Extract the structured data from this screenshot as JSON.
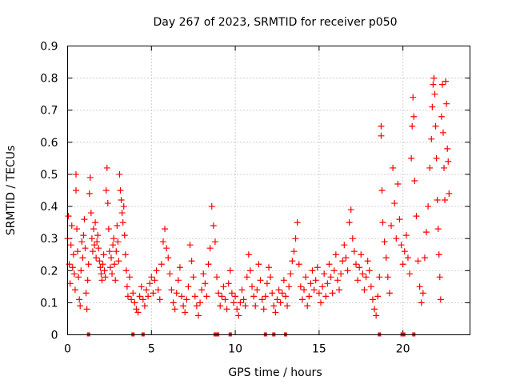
{
  "chart_data": {
    "type": "scatter",
    "title": "Day 267 of 2023, SRMTID for receiver p050",
    "xlabel": "GPS time / hours",
    "ylabel": "SRMTID / TECUs",
    "xlim": [
      0,
      24
    ],
    "ylim": [
      0,
      0.9
    ],
    "xticks": [
      0,
      5,
      10,
      15,
      20
    ],
    "xtick_labels": [
      "0",
      "5",
      "10",
      "15",
      "20"
    ],
    "yticks": [
      0,
      0.1,
      0.2,
      0.3,
      0.4,
      0.5,
      0.6,
      0.7,
      0.8,
      0.9
    ],
    "ytick_labels": [
      "0",
      "0.1",
      "0.2",
      "0.3",
      "0.4",
      "0.5",
      "0.6",
      "0.7",
      "0.8",
      "0.9"
    ],
    "grid": true,
    "marker": "+",
    "series": [
      {
        "name": "SRMTID",
        "color": "#ff0000",
        "points": [
          [
            0.0,
            0.3
          ],
          [
            0.05,
            0.37
          ],
          [
            0.1,
            0.22
          ],
          [
            0.15,
            0.16
          ],
          [
            0.2,
            0.28
          ],
          [
            0.25,
            0.34
          ],
          [
            0.3,
            0.21
          ],
          [
            0.35,
            0.25
          ],
          [
            0.4,
            0.19
          ],
          [
            0.45,
            0.14
          ],
          [
            0.5,
            0.5
          ],
          [
            0.5,
            0.45
          ],
          [
            0.55,
            0.33
          ],
          [
            0.6,
            0.26
          ],
          [
            0.65,
            0.18
          ],
          [
            0.7,
            0.11
          ],
          [
            0.75,
            0.09
          ],
          [
            0.8,
            0.2
          ],
          [
            0.85,
            0.29
          ],
          [
            0.9,
            0.24
          ],
          [
            0.95,
            0.31
          ],
          [
            1.0,
            0.36
          ],
          [
            1.05,
            0.27
          ],
          [
            1.1,
            0.13
          ],
          [
            1.15,
            0.08
          ],
          [
            1.2,
            0.17
          ],
          [
            1.25,
            0.22
          ],
          [
            1.3,
            0.44
          ],
          [
            1.35,
            0.49
          ],
          [
            1.4,
            0.38
          ],
          [
            1.45,
            0.3
          ],
          [
            1.5,
            0.26
          ],
          [
            1.55,
            0.33
          ],
          [
            1.6,
            0.28
          ],
          [
            1.65,
            0.35
          ],
          [
            1.7,
            0.24
          ],
          [
            1.75,
            0.29
          ],
          [
            1.8,
            0.31
          ],
          [
            1.85,
            0.27
          ],
          [
            1.9,
            0.23
          ],
          [
            1.95,
            0.21
          ],
          [
            2.0,
            0.19
          ],
          [
            2.05,
            0.17
          ],
          [
            2.1,
            0.22
          ],
          [
            2.15,
            0.25
          ],
          [
            2.2,
            0.2
          ],
          [
            2.25,
            0.18
          ],
          [
            2.3,
            0.45
          ],
          [
            2.35,
            0.52
          ],
          [
            2.4,
            0.41
          ],
          [
            2.45,
            0.33
          ],
          [
            2.5,
            0.26
          ],
          [
            2.55,
            0.21
          ],
          [
            2.6,
            0.24
          ],
          [
            2.65,
            0.19
          ],
          [
            2.7,
            0.28
          ],
          [
            2.75,
            0.3
          ],
          [
            2.8,
            0.22
          ],
          [
            2.85,
            0.17
          ],
          [
            2.9,
            0.26
          ],
          [
            2.95,
            0.34
          ],
          [
            3.0,
            0.29
          ],
          [
            3.05,
            0.23
          ],
          [
            3.1,
            0.5
          ],
          [
            3.15,
            0.45
          ],
          [
            3.2,
            0.42
          ],
          [
            3.25,
            0.38
          ],
          [
            3.3,
            0.35
          ],
          [
            3.35,
            0.4
          ],
          [
            3.4,
            0.31
          ],
          [
            3.45,
            0.25
          ],
          [
            3.5,
            0.2
          ],
          [
            3.55,
            0.15
          ],
          [
            3.6,
            0.12
          ],
          [
            3.7,
            0.18
          ],
          [
            3.8,
            0.11
          ],
          [
            3.9,
            0.13
          ],
          [
            4.0,
            0.1
          ],
          [
            4.1,
            0.08
          ],
          [
            4.2,
            0.07
          ],
          [
            4.3,
            0.12
          ],
          [
            4.4,
            0.15
          ],
          [
            4.5,
            0.11
          ],
          [
            4.6,
            0.09
          ],
          [
            4.7,
            0.14
          ],
          [
            4.8,
            0.12
          ],
          [
            4.9,
            0.16
          ],
          [
            5.0,
            0.18
          ],
          [
            5.1,
            0.13
          ],
          [
            5.2,
            0.17
          ],
          [
            5.3,
            0.2
          ],
          [
            5.4,
            0.14
          ],
          [
            5.5,
            0.11
          ],
          [
            5.6,
            0.22
          ],
          [
            5.7,
            0.29
          ],
          [
            5.8,
            0.33
          ],
          [
            5.9,
            0.27
          ],
          [
            6.0,
            0.24
          ],
          [
            6.1,
            0.19
          ],
          [
            6.2,
            0.14
          ],
          [
            6.3,
            0.1
          ],
          [
            6.4,
            0.08
          ],
          [
            6.5,
            0.13
          ],
          [
            6.6,
            0.17
          ],
          [
            6.7,
            0.21
          ],
          [
            6.8,
            0.12
          ],
          [
            6.9,
            0.09
          ],
          [
            7.0,
            0.07
          ],
          [
            7.1,
            0.11
          ],
          [
            7.2,
            0.15
          ],
          [
            7.3,
            0.28
          ],
          [
            7.4,
            0.23
          ],
          [
            7.5,
            0.18
          ],
          [
            7.6,
            0.12
          ],
          [
            7.7,
            0.09
          ],
          [
            7.8,
            0.06
          ],
          [
            7.9,
            0.1
          ],
          [
            8.0,
            0.14
          ],
          [
            8.1,
            0.19
          ],
          [
            8.2,
            0.16
          ],
          [
            8.3,
            0.12
          ],
          [
            8.4,
            0.22
          ],
          [
            8.5,
            0.27
          ],
          [
            8.6,
            0.4
          ],
          [
            8.7,
            0.34
          ],
          [
            8.8,
            0.29
          ],
          [
            8.9,
            0.18
          ],
          [
            9.0,
            0.13
          ],
          [
            9.1,
            0.09
          ],
          [
            9.2,
            0.12
          ],
          [
            9.3,
            0.15
          ],
          [
            9.4,
            0.11
          ],
          [
            9.5,
            0.08
          ],
          [
            9.6,
            0.16
          ],
          [
            9.7,
            0.2
          ],
          [
            9.8,
            0.13
          ],
          [
            9.9,
            0.1
          ],
          [
            10.0,
            0.12
          ],
          [
            10.1,
            0.08
          ],
          [
            10.2,
            0.06
          ],
          [
            10.3,
            0.1
          ],
          [
            10.4,
            0.14
          ],
          [
            10.5,
            0.11
          ],
          [
            10.6,
            0.09
          ],
          [
            10.7,
            0.18
          ],
          [
            10.8,
            0.25
          ],
          [
            10.9,
            0.2
          ],
          [
            11.0,
            0.15
          ],
          [
            11.1,
            0.12
          ],
          [
            11.2,
            0.09
          ],
          [
            11.3,
            0.14
          ],
          [
            11.4,
            0.22
          ],
          [
            11.5,
            0.17
          ],
          [
            11.6,
            0.11
          ],
          [
            11.7,
            0.08
          ],
          [
            11.8,
            0.12
          ],
          [
            11.9,
            0.16
          ],
          [
            12.0,
            0.21
          ],
          [
            12.1,
            0.18
          ],
          [
            12.2,
            0.13
          ],
          [
            12.3,
            0.09
          ],
          [
            12.4,
            0.07
          ],
          [
            12.5,
            0.11
          ],
          [
            12.6,
            0.14
          ],
          [
            12.7,
            0.1
          ],
          [
            12.8,
            0.13
          ],
          [
            12.9,
            0.17
          ],
          [
            13.0,
            0.12
          ],
          [
            13.1,
            0.09
          ],
          [
            13.2,
            0.15
          ],
          [
            13.3,
            0.19
          ],
          [
            13.4,
            0.23
          ],
          [
            13.5,
            0.26
          ],
          [
            13.6,
            0.3
          ],
          [
            13.7,
            0.35
          ],
          [
            13.8,
            0.22
          ],
          [
            13.9,
            0.15
          ],
          [
            14.0,
            0.11
          ],
          [
            14.1,
            0.14
          ],
          [
            14.2,
            0.18
          ],
          [
            14.3,
            0.09
          ],
          [
            14.4,
            0.12
          ],
          [
            14.5,
            0.16
          ],
          [
            14.6,
            0.2
          ],
          [
            14.7,
            0.14
          ],
          [
            14.8,
            0.17
          ],
          [
            14.9,
            0.21
          ],
          [
            15.0,
            0.13
          ],
          [
            15.1,
            0.1
          ],
          [
            15.2,
            0.15
          ],
          [
            15.3,
            0.19
          ],
          [
            15.4,
            0.12
          ],
          [
            15.5,
            0.16
          ],
          [
            15.6,
            0.22
          ],
          [
            15.7,
            0.18
          ],
          [
            15.8,
            0.13
          ],
          [
            15.9,
            0.2
          ],
          [
            16.0,
            0.25
          ],
          [
            16.1,
            0.17
          ],
          [
            16.2,
            0.14
          ],
          [
            16.3,
            0.19
          ],
          [
            16.4,
            0.23
          ],
          [
            16.5,
            0.28
          ],
          [
            16.6,
            0.24
          ],
          [
            16.7,
            0.2
          ],
          [
            16.8,
            0.35
          ],
          [
            16.9,
            0.39
          ],
          [
            17.0,
            0.3
          ],
          [
            17.1,
            0.26
          ],
          [
            17.2,
            0.22
          ],
          [
            17.3,
            0.17
          ],
          [
            17.4,
            0.21
          ],
          [
            17.5,
            0.25
          ],
          [
            17.6,
            0.19
          ],
          [
            17.7,
            0.14
          ],
          [
            17.8,
            0.18
          ],
          [
            17.9,
            0.23
          ],
          [
            18.0,
            0.2
          ],
          [
            18.1,
            0.15
          ],
          [
            18.2,
            0.11
          ],
          [
            18.3,
            0.08
          ],
          [
            18.4,
            0.06
          ],
          [
            18.5,
            0.12
          ],
          [
            18.6,
            0.18
          ],
          [
            18.7,
            0.65
          ],
          [
            18.7,
            0.62
          ],
          [
            18.75,
            0.45
          ],
          [
            18.8,
            0.35
          ],
          [
            18.9,
            0.29
          ],
          [
            19.0,
            0.24
          ],
          [
            19.1,
            0.18
          ],
          [
            19.2,
            0.13
          ],
          [
            19.3,
            0.34
          ],
          [
            19.4,
            0.52
          ],
          [
            19.5,
            0.41
          ],
          [
            19.6,
            0.3
          ],
          [
            19.7,
            0.47
          ],
          [
            19.8,
            0.36
          ],
          [
            19.9,
            0.28
          ],
          [
            20.0,
            0.22
          ],
          [
            20.1,
            0.26
          ],
          [
            20.2,
            0.31
          ],
          [
            20.3,
            0.24
          ],
          [
            20.4,
            0.19
          ],
          [
            20.5,
            0.55
          ],
          [
            20.55,
            0.65
          ],
          [
            20.6,
            0.74
          ],
          [
            20.65,
            0.68
          ],
          [
            20.7,
            0.48
          ],
          [
            20.8,
            0.37
          ],
          [
            20.9,
            0.23
          ],
          [
            21.0,
            0.15
          ],
          [
            21.1,
            0.1
          ],
          [
            21.2,
            0.13
          ],
          [
            21.3,
            0.24
          ],
          [
            21.4,
            0.32
          ],
          [
            21.5,
            0.4
          ],
          [
            21.6,
            0.52
          ],
          [
            21.7,
            0.61
          ],
          [
            21.75,
            0.71
          ],
          [
            21.8,
            0.78
          ],
          [
            21.85,
            0.8
          ],
          [
            21.9,
            0.75
          ],
          [
            21.95,
            0.65
          ],
          [
            22.0,
            0.55
          ],
          [
            22.05,
            0.42
          ],
          [
            22.1,
            0.33
          ],
          [
            22.15,
            0.25
          ],
          [
            22.2,
            0.18
          ],
          [
            22.25,
            0.11
          ],
          [
            22.3,
            0.68
          ],
          [
            22.35,
            0.78
          ],
          [
            22.4,
            0.63
          ],
          [
            22.45,
            0.52
          ],
          [
            22.5,
            0.42
          ],
          [
            22.55,
            0.79
          ],
          [
            22.6,
            0.72
          ],
          [
            22.65,
            0.58
          ],
          [
            22.7,
            0.54
          ],
          [
            22.75,
            0.44
          ]
        ],
        "zero_markers": [
          1.25,
          3.9,
          4.5,
          8.8,
          8.95,
          9.7,
          11.8,
          12.3,
          13.0,
          18.6,
          19.95,
          20.05,
          20.65
        ]
      }
    ]
  }
}
